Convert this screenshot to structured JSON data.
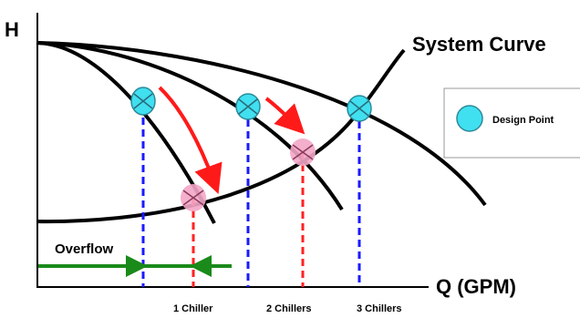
{
  "axes": {
    "y_label": "H",
    "x_label": "Q (GPM)"
  },
  "system_curve_label": "System Curve",
  "overflow_label": "Overflow",
  "legend": {
    "label": "Design Point"
  },
  "chiller_labels": [
    "1 Chiller",
    "2 Chillers",
    "3 Chillers"
  ],
  "colors": {
    "curve": "#000000",
    "design_point_fill": "#40e0f0",
    "design_point_stroke": "#2a8a9a",
    "operating_point_fill": "#f3a6c8",
    "design_drop_line": "#1a1aff",
    "operating_drop_line": "#ff2222",
    "arrow_red": "#ff1a1a",
    "arrow_green": "#1a8a1a"
  }
}
